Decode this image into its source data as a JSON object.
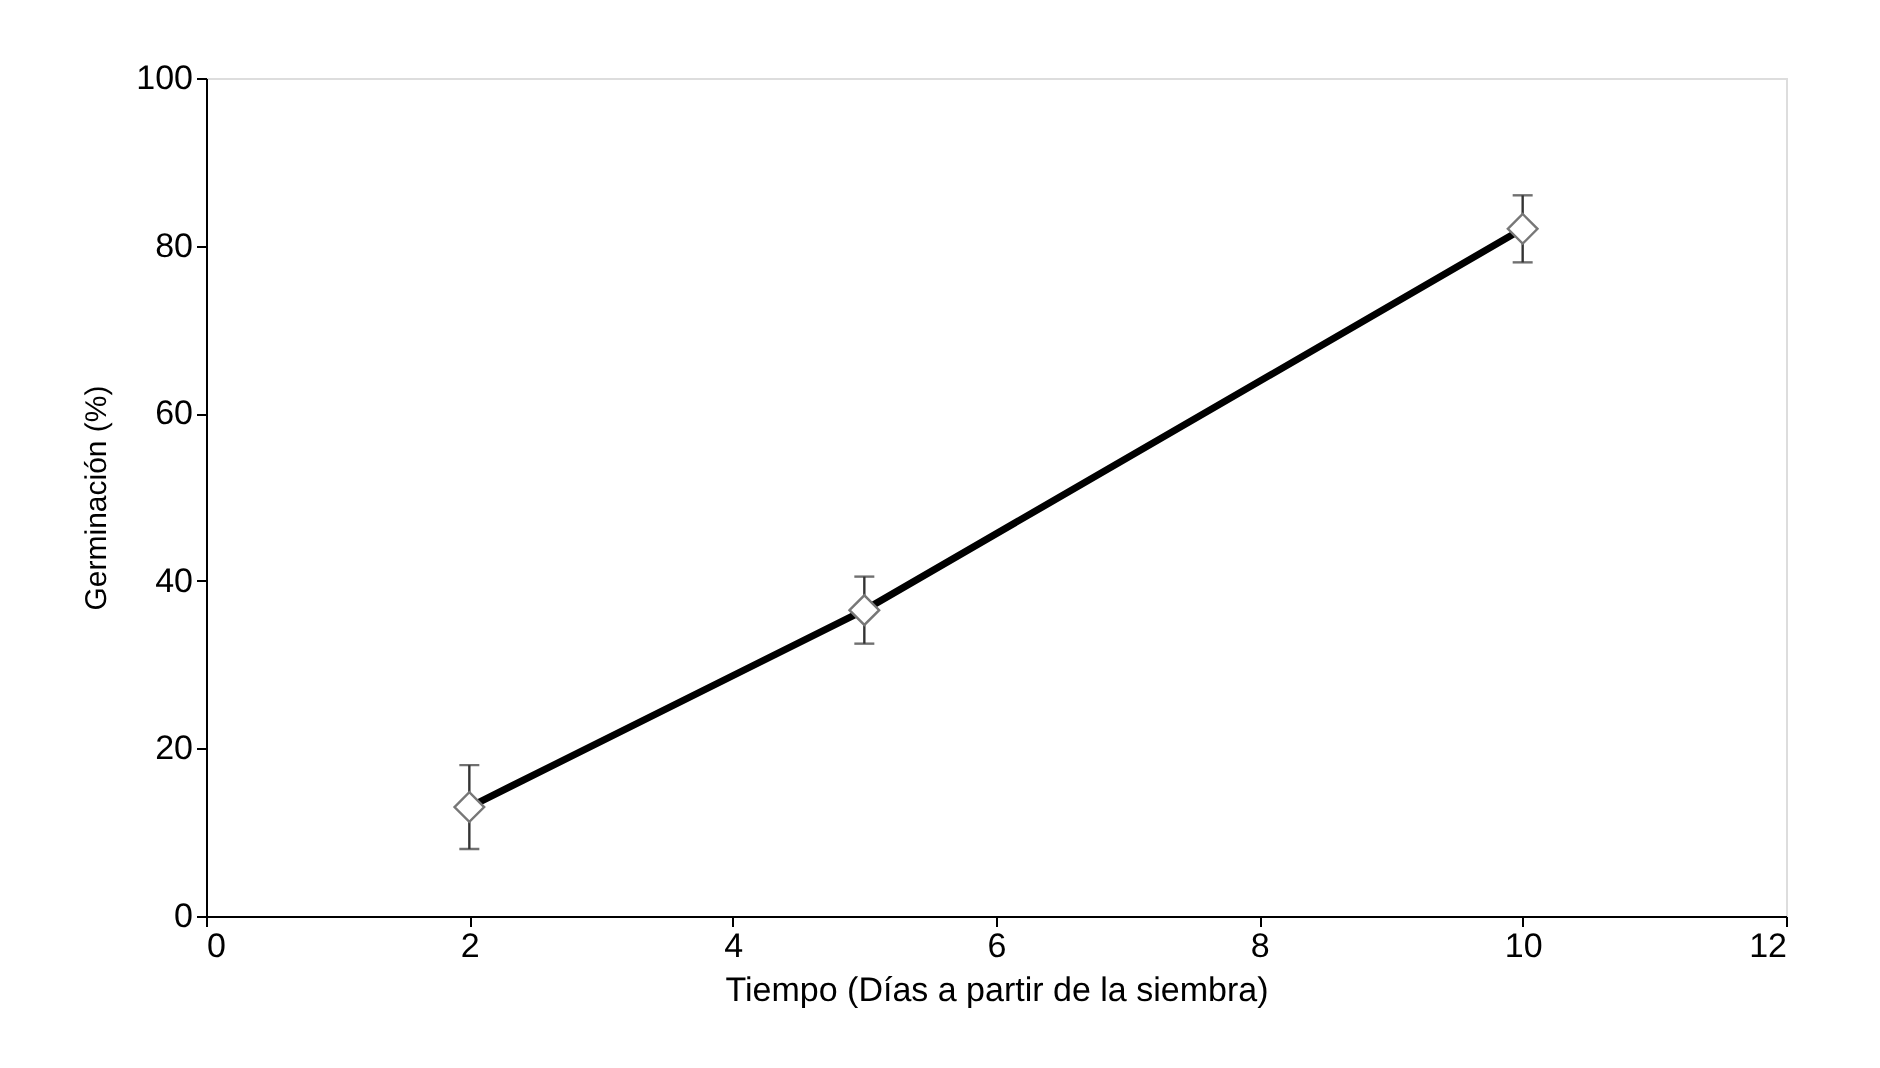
{
  "chart_data": {
    "type": "line",
    "xlabel": "Tiempo (Días a partir de la siembra)",
    "ylabel": "Germinación (%)",
    "x": [
      2,
      5,
      10
    ],
    "series": [
      {
        "color": "#000000",
        "values": [
          13,
          36.5,
          82
        ],
        "errors": [
          5,
          4,
          4
        ]
      }
    ],
    "xlim": [
      0,
      12
    ],
    "xticks": [
      0,
      2,
      4,
      6,
      8,
      10,
      12
    ],
    "ylim": [
      0,
      100
    ],
    "yticks": [
      0,
      20,
      40,
      60,
      80,
      100
    ],
    "grid": false,
    "marker": "diamond",
    "line_style": "solid"
  }
}
